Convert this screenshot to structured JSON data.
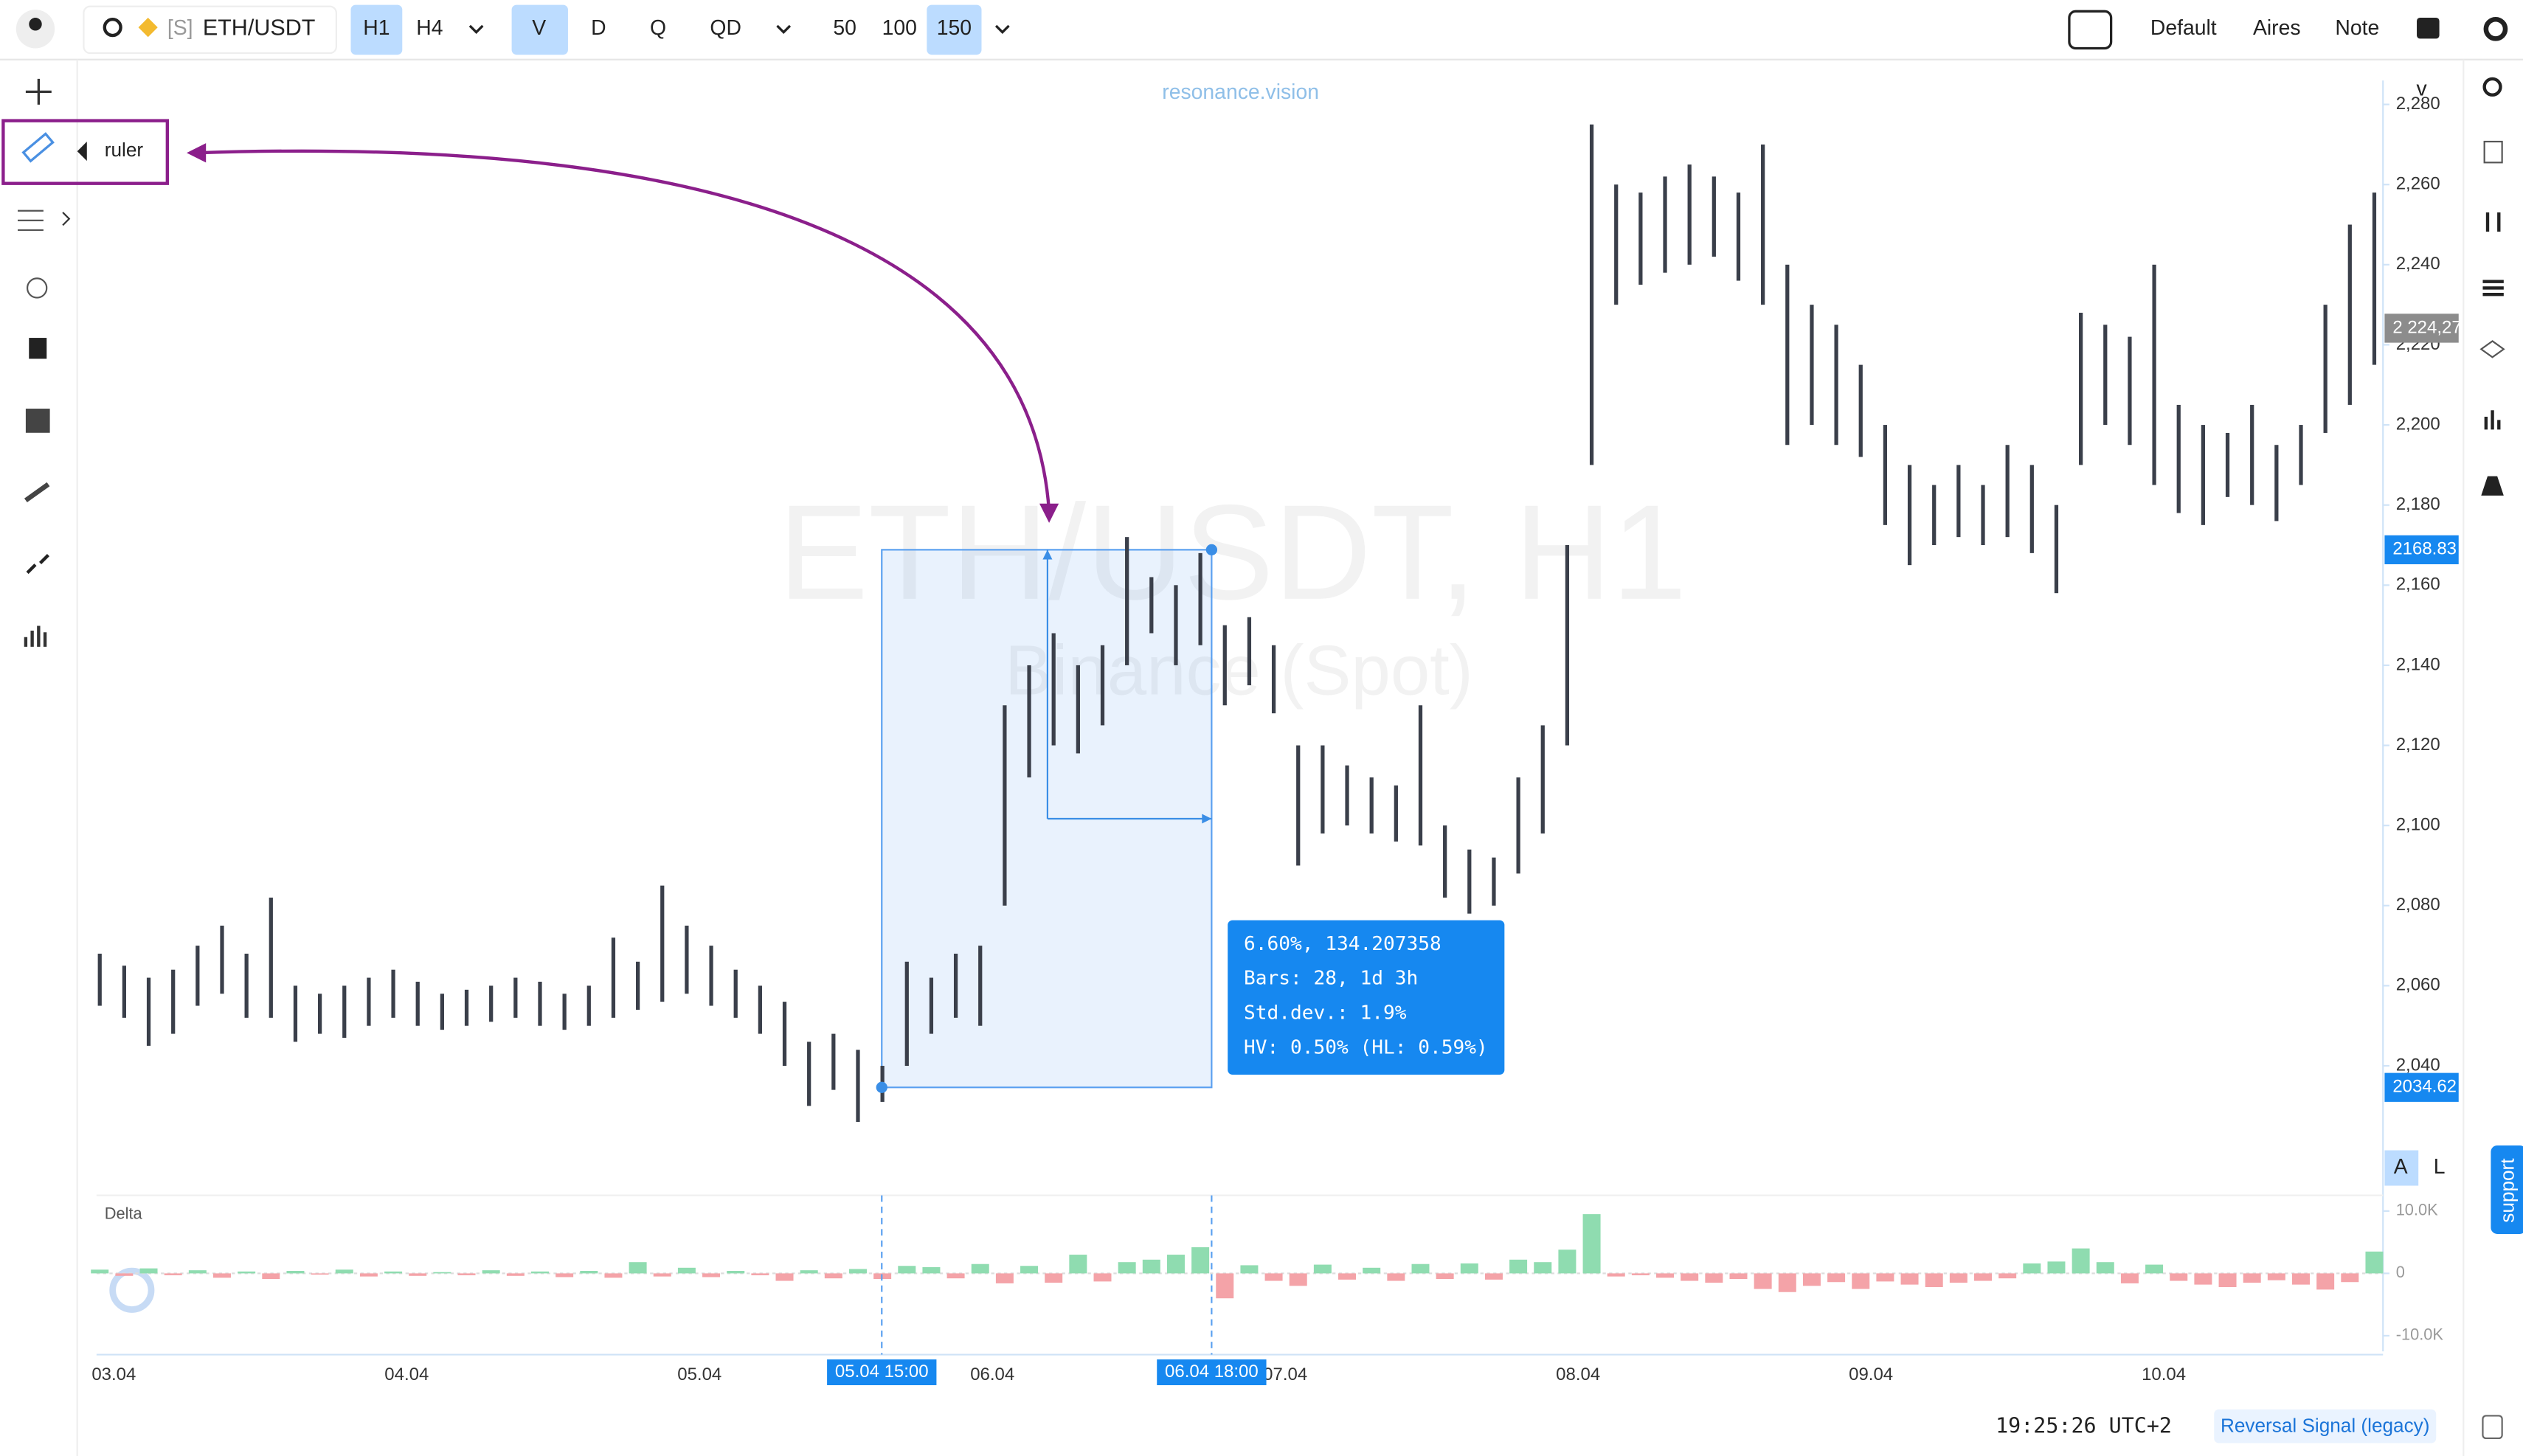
{
  "toolbar": {
    "symbol_prefix": "[S]",
    "symbol": "ETH/USDT",
    "timeframes": [
      "H1",
      "H4"
    ],
    "modes": [
      "V",
      "D",
      "Q",
      "QD"
    ],
    "counts": [
      "50",
      "100",
      "150"
    ],
    "templates": [
      "Default",
      "Aires",
      "Note"
    ]
  },
  "watermark": {
    "brand": "resonance.vision",
    "title": "ETH/USDT, H1",
    "subtitle": "Binance (Spot)"
  },
  "tool_tooltip": "ruler",
  "ruler": {
    "start_price": 2034.62,
    "end_price": 2168.83,
    "start_label": "2034.62",
    "end_label": "2168.83",
    "start_time": "05.04 15:00",
    "end_time": "06.04 18:00",
    "lines": [
      "6.60%, 134.207358",
      "Bars: 28, 1d 3h",
      "Std.dev.: 1.9%",
      "HV: 0.50% (HL: 0.59%)"
    ]
  },
  "last_price_label": "2 224,27",
  "axis_corner": "v",
  "scale_buttons": [
    "A",
    "L"
  ],
  "support": "support",
  "status": {
    "clock": "19:25:26 UTC+2",
    "indicator": "Reversal Signal (legacy)"
  },
  "chart_data": {
    "type": "ohlc",
    "categories": [
      "03.04",
      "04.04",
      "05.04",
      "06.04",
      "07.04",
      "08.04",
      "09.04",
      "10.04"
    ],
    "lows": [
      2055,
      2052,
      2045,
      2048,
      2055,
      2058,
      2052,
      2052,
      2046,
      2048,
      2047,
      2050,
      2052,
      2050,
      2049,
      2050,
      2051,
      2052,
      2050,
      2049,
      2050,
      2052,
      2054,
      2056,
      2058,
      2055,
      2052,
      2048,
      2040,
      2030,
      2034,
      2026,
      2031,
      2040,
      2048,
      2052,
      2050,
      2080,
      2112,
      2120,
      2118,
      2125,
      2140,
      2148,
      2140,
      2145,
      2130,
      2135,
      2128,
      2090,
      2098,
      2100,
      2098,
      2096,
      2095,
      2082,
      2078,
      2080,
      2088,
      2098,
      2120,
      2190,
      2230,
      2235,
      2238,
      2240,
      2242,
      2236,
      2230,
      2195,
      2200,
      2195,
      2192,
      2175,
      2165,
      2170,
      2172,
      2170,
      2172,
      2168,
      2158,
      2190,
      2200,
      2195,
      2185,
      2178,
      2175,
      2182,
      2180,
      2176,
      2185,
      2198,
      2205,
      2215
    ],
    "highs": [
      2068,
      2065,
      2062,
      2064,
      2070,
      2075,
      2068,
      2082,
      2060,
      2058,
      2060,
      2062,
      2064,
      2061,
      2058,
      2059,
      2060,
      2062,
      2061,
      2058,
      2060,
      2072,
      2066,
      2085,
      2075,
      2070,
      2064,
      2060,
      2056,
      2046,
      2048,
      2044,
      2040,
      2066,
      2062,
      2068,
      2070,
      2130,
      2140,
      2148,
      2140,
      2145,
      2172,
      2162,
      2160,
      2168,
      2150,
      2152,
      2145,
      2120,
      2120,
      2115,
      2112,
      2110,
      2130,
      2100,
      2094,
      2092,
      2112,
      2125,
      2170,
      2275,
      2260,
      2258,
      2262,
      2265,
      2262,
      2258,
      2270,
      2240,
      2230,
      2225,
      2215,
      2200,
      2190,
      2185,
      2190,
      2185,
      2195,
      2190,
      2180,
      2228,
      2225,
      2222,
      2240,
      2205,
      2200,
      2198,
      2205,
      2195,
      2200,
      2230,
      2250,
      2258
    ],
    "ylim": [
      2020,
      2290
    ],
    "yticks": [
      {
        "value": 2040,
        "label": "2,040"
      },
      {
        "value": 2060,
        "label": "2,060"
      },
      {
        "value": 2080,
        "label": "2,080"
      },
      {
        "value": 2100,
        "label": "2,100"
      },
      {
        "value": 2120,
        "label": "2,120"
      },
      {
        "value": 2140,
        "label": "2,140"
      },
      {
        "value": 2160,
        "label": "2,160"
      },
      {
        "value": 2180,
        "label": "2,180"
      },
      {
        "value": 2200,
        "label": "2,200"
      },
      {
        "value": 2220,
        "label": "2,220"
      },
      {
        "value": 2240,
        "label": "2,240"
      },
      {
        "value": 2260,
        "label": "2,260"
      },
      {
        "value": 2280,
        "label": "2,280"
      }
    ],
    "delta": {
      "title": "Delta",
      "values": [
        600,
        -400,
        800,
        -300,
        500,
        -700,
        300,
        -900,
        400,
        -200,
        600,
        -500,
        300,
        -400,
        200,
        -300,
        500,
        -400,
        300,
        -600,
        400,
        -700,
        1800,
        -500,
        900,
        -600,
        400,
        -300,
        -1200,
        500,
        -800,
        700,
        -900,
        1200,
        1000,
        -800,
        1500,
        -1600,
        1200,
        -1500,
        3000,
        -1300,
        1800,
        2200,
        3000,
        4200,
        -4000,
        1300,
        -1200,
        -2000,
        1400,
        -1000,
        900,
        -1200,
        1500,
        -900,
        1600,
        -1000,
        2200,
        1800,
        3800,
        9500,
        -500,
        -300,
        -700,
        -1200,
        -1500,
        -900,
        -2500,
        -3000,
        -2000,
        -1400,
        -2500,
        -1300,
        -1800,
        -2200,
        -1500,
        -1200,
        -800,
        1600,
        1900,
        4000,
        1800,
        -1600,
        1400,
        -1200,
        -1800,
        -2200,
        -1500,
        -1100,
        -1800,
        -2600,
        -1400,
        3500
      ],
      "ylim": [
        -12000,
        12000
      ],
      "yticks": [
        {
          "value": 10000,
          "label": "10.0K"
        },
        0,
        {
          "value": -10000,
          "label": "-10.0K"
        }
      ]
    }
  }
}
